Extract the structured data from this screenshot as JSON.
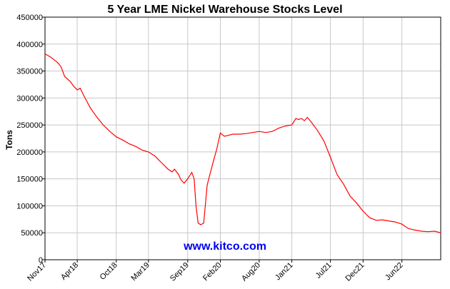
{
  "chart_data": {
    "type": "line",
    "title": "5 Year LME Nickel Warehouse Stocks Level",
    "ylabel": "Tons",
    "xlabel": "",
    "watermark": "www.kitco.com",
    "ylim": [
      0,
      450000
    ],
    "yticks": [
      0,
      50000,
      100000,
      150000,
      200000,
      250000,
      300000,
      350000,
      400000,
      450000
    ],
    "ytick_labels": [
      "0",
      "50000",
      "100000",
      "150000",
      "200000",
      "250000",
      "300000",
      "350000",
      "400000",
      "450000"
    ],
    "xlim": [
      "2017-11-01",
      "2022-11-30"
    ],
    "xticks": [
      "2017-11-01",
      "2018-04-01",
      "2018-10-01",
      "2019-03-01",
      "2019-09-01",
      "2020-02-01",
      "2020-08-01",
      "2021-01-01",
      "2021-07-01",
      "2021-12-01",
      "2022-06-01"
    ],
    "xtick_labels": [
      "Nov17",
      "Apr18",
      "Oct18",
      "Mar19",
      "Sep19",
      "Feb20",
      "Aug20",
      "Jan21",
      "Jul21",
      "Dec21",
      "Jun22"
    ],
    "grid": true,
    "colors": {
      "line": "#ff0000",
      "watermark": "#0000ee",
      "grid": "#c8c8c8",
      "axis": "#000000"
    },
    "series": [
      {
        "name": "",
        "x": [
          "2017-11-01",
          "2017-12-01",
          "2018-01-01",
          "2018-01-15",
          "2018-02-01",
          "2018-03-01",
          "2018-03-15",
          "2018-04-01",
          "2018-04-15",
          "2018-05-01",
          "2018-06-01",
          "2018-07-01",
          "2018-08-01",
          "2018-09-01",
          "2018-10-01",
          "2018-11-01",
          "2018-12-01",
          "2019-01-01",
          "2019-02-01",
          "2019-03-01",
          "2019-04-01",
          "2019-05-01",
          "2019-06-01",
          "2019-06-20",
          "2019-07-01",
          "2019-07-20",
          "2019-08-01",
          "2019-08-15",
          "2019-09-01",
          "2019-09-20",
          "2019-10-01",
          "2019-10-10",
          "2019-10-20",
          "2019-11-01",
          "2019-11-15",
          "2019-12-01",
          "2019-12-15",
          "2020-01-01",
          "2020-01-15",
          "2020-02-01",
          "2020-02-10",
          "2020-02-20",
          "2020-03-01",
          "2020-04-01",
          "2020-05-01",
          "2020-06-01",
          "2020-07-01",
          "2020-08-01",
          "2020-09-01",
          "2020-10-01",
          "2020-11-01",
          "2020-12-01",
          "2021-01-01",
          "2021-01-20",
          "2021-02-01",
          "2021-02-15",
          "2021-03-01",
          "2021-03-15",
          "2021-04-01",
          "2021-05-01",
          "2021-06-01",
          "2021-07-01",
          "2021-08-01",
          "2021-09-01",
          "2021-10-01",
          "2021-11-01",
          "2021-12-01",
          "2022-01-01",
          "2022-02-01",
          "2022-03-01",
          "2022-04-01",
          "2022-05-01",
          "2022-06-01",
          "2022-07-01",
          "2022-08-01",
          "2022-09-01",
          "2022-10-01",
          "2022-11-01",
          "2022-11-30"
        ],
        "y": [
          382000,
          375000,
          365000,
          358000,
          340000,
          330000,
          322000,
          315000,
          318000,
          305000,
          282000,
          265000,
          250000,
          238000,
          228000,
          222000,
          215000,
          210000,
          203000,
          200000,
          192000,
          180000,
          168000,
          163000,
          168000,
          158000,
          148000,
          142000,
          150000,
          162000,
          150000,
          100000,
          68000,
          65000,
          68000,
          138000,
          160000,
          185000,
          205000,
          235000,
          232000,
          229000,
          230000,
          233000,
          233000,
          234000,
          236000,
          238000,
          236000,
          238000,
          244000,
          248000,
          250000,
          262000,
          260000,
          262000,
          258000,
          264000,
          256000,
          240000,
          220000,
          190000,
          158000,
          140000,
          118000,
          105000,
          90000,
          78000,
          73000,
          74000,
          72000,
          70000,
          66000,
          58000,
          55000,
          53000,
          52000,
          53000,
          50000
        ]
      }
    ]
  }
}
